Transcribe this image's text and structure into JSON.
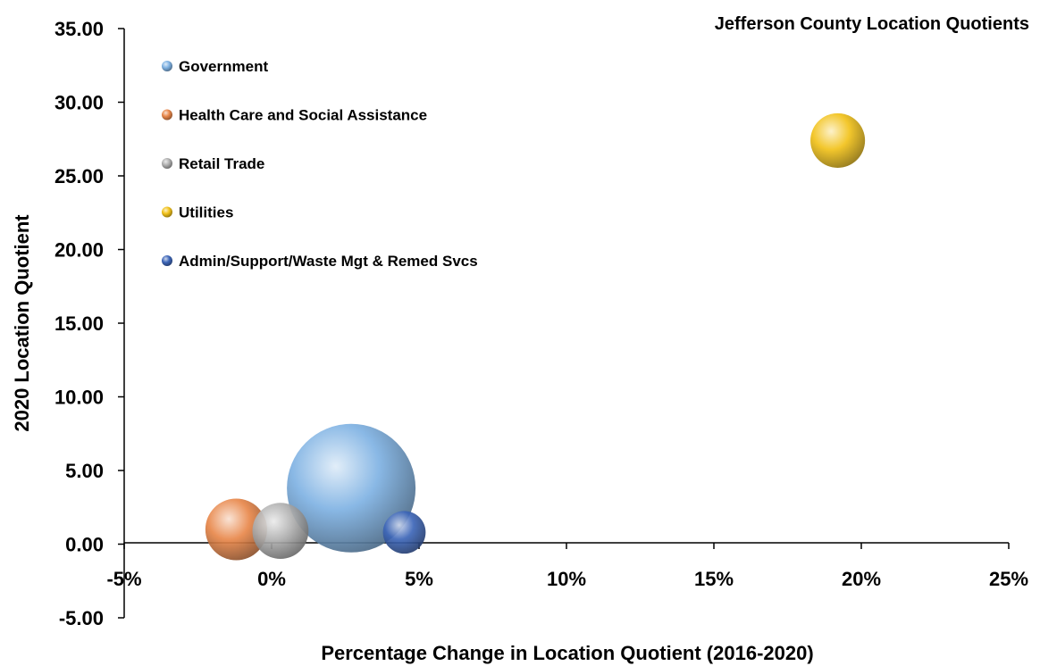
{
  "chart_data": {
    "type": "bubble",
    "title": "Jefferson County Location Quotients",
    "xlabel": "Percentage Change in Location Quotient (2016-2020)",
    "ylabel": "2020 Location Quotient",
    "xlim": [
      -5,
      25
    ],
    "ylim": [
      -5,
      35
    ],
    "x_ticks": [
      -5,
      0,
      5,
      10,
      15,
      20,
      25
    ],
    "x_tick_labels": [
      "-5%",
      "0%",
      "5%",
      "10%",
      "15%",
      "20%",
      "25%"
    ],
    "y_ticks": [
      -5,
      0,
      5,
      10,
      15,
      20,
      25,
      30,
      35
    ],
    "y_tick_labels": [
      "-5.00",
      "0.00",
      "5.00",
      "10.00",
      "15.00",
      "20.00",
      "25.00",
      "30.00",
      "35.00"
    ],
    "grid": false,
    "legend_position": "top-left",
    "series": [
      {
        "name": "Government",
        "x": 2.7,
        "y": 3.8,
        "size": 100,
        "color": "#7fb2e3"
      },
      {
        "name": "Health Care and Social Assistance",
        "x": -1.2,
        "y": 1.0,
        "size": 23,
        "color": "#e8874a"
      },
      {
        "name": "Retail Trade",
        "x": 0.3,
        "y": 0.9,
        "size": 19,
        "color": "#b0b0b0"
      },
      {
        "name": "Utilities",
        "x": 19.2,
        "y": 27.4,
        "size": 18,
        "color": "#f2c21a"
      },
      {
        "name": "Admin/Support/Waste Mgt & Remed Svcs",
        "x": 4.5,
        "y": 0.8,
        "size": 11,
        "color": "#3d66b8"
      }
    ]
  }
}
